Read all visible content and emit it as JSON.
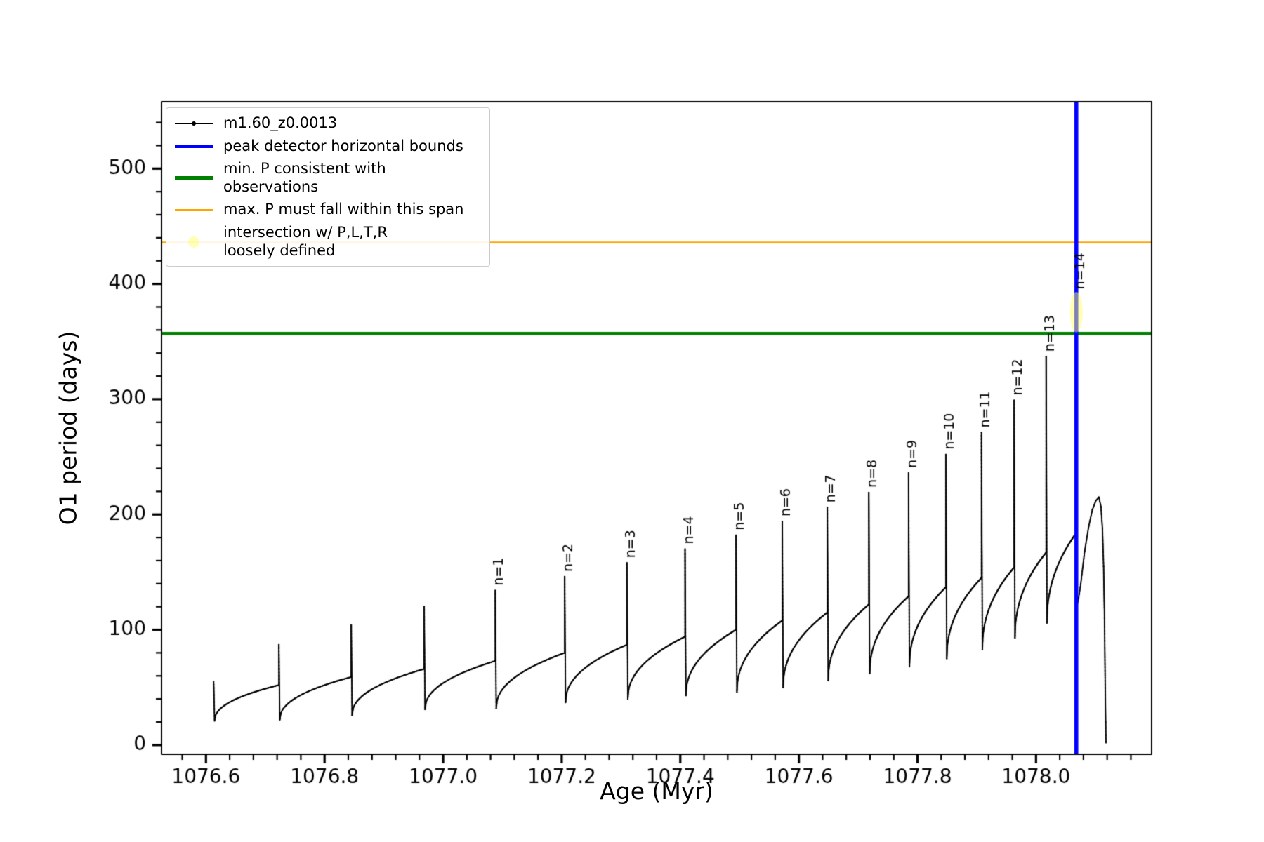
{
  "figure": {
    "xlabel": "Age (Myr)",
    "ylabel": "O1 period (days)"
  },
  "colors": {
    "series": "#000000",
    "peak_bounds": "#0000ff",
    "min_p": "#008000",
    "max_p": "#ffa500",
    "intersection": "#ffff66",
    "background": "#ffffff"
  },
  "legend": {
    "entries": [
      {
        "label": "m1.60_z0.0013"
      },
      {
        "label": "peak detector horizontal bounds"
      },
      {
        "label": "min. P consistent with observations"
      },
      {
        "label": "max. P must fall within this span"
      },
      {
        "label": "intersection w/ P,L,T,R\nloosely defined"
      }
    ]
  },
  "chart_data": {
    "type": "line",
    "title": "",
    "xlabel": "Age (Myr)",
    "ylabel": "O1 period (days)",
    "series_name": "m1.60_z0.0013",
    "xlim": [
      1076.525,
      1078.195
    ],
    "ylim": [
      -8,
      558
    ],
    "xticks": [
      1076.6,
      1076.8,
      1077.0,
      1077.2,
      1077.4,
      1077.6,
      1077.8,
      1078.0
    ],
    "xtick_labels": [
      "1076.6",
      "1076.8",
      "1077.0",
      "1077.2",
      "1077.4",
      "1077.6",
      "1077.8",
      "1078.0"
    ],
    "x_minor_step": 0.04,
    "yticks": [
      0,
      100,
      200,
      300,
      400,
      500
    ],
    "y_minor_step": 20,
    "grid": false,
    "legend_position": "upper left",
    "hlines": [
      {
        "y": 436,
        "color": "#ffa500",
        "lw": 2.5,
        "name": "max. P must fall within this span"
      },
      {
        "y": 357,
        "color": "#008000",
        "lw": 4.5,
        "name": "min. P consistent with observations"
      }
    ],
    "vlines": [
      {
        "x": 1078.068,
        "color": "#0000ff",
        "lw": 5.5,
        "name": "peak detector horizontal bounds"
      }
    ],
    "intersection_marker": {
      "x": 1078.068,
      "y_span": [
        358,
        393
      ],
      "color": "#ffff66",
      "alpha": 0.5
    },
    "start": {
      "x": 1076.613,
      "y_top": 55,
      "y_min": 21
    },
    "cycles": [
      {
        "x_spike": 1076.723,
        "y_peak": 87,
        "y_plateau": 52,
        "y_min_after": 22,
        "label": ""
      },
      {
        "x_spike": 1076.845,
        "y_peak": 104,
        "y_plateau": 59,
        "y_min_after": 26,
        "label": ""
      },
      {
        "x_spike": 1076.968,
        "y_peak": 120,
        "y_plateau": 66,
        "y_min_after": 31,
        "label": ""
      },
      {
        "x_spike": 1077.088,
        "y_peak": 134,
        "y_plateau": 73,
        "y_min_after": 32,
        "label": "n=1"
      },
      {
        "x_spike": 1077.205,
        "y_peak": 146,
        "y_plateau": 80,
        "y_min_after": 37,
        "label": "n=2"
      },
      {
        "x_spike": 1077.31,
        "y_peak": 158,
        "y_plateau": 87,
        "y_min_after": 40,
        "label": "n=3"
      },
      {
        "x_spike": 1077.408,
        "y_peak": 170,
        "y_plateau": 94,
        "y_min_after": 43,
        "label": "n=4"
      },
      {
        "x_spike": 1077.494,
        "y_peak": 182,
        "y_plateau": 100,
        "y_min_after": 46,
        "label": "n=5"
      },
      {
        "x_spike": 1077.572,
        "y_peak": 194,
        "y_plateau": 108,
        "y_min_after": 50,
        "label": "n=6"
      },
      {
        "x_spike": 1077.648,
        "y_peak": 206,
        "y_plateau": 115,
        "y_min_after": 56,
        "label": "n=7"
      },
      {
        "x_spike": 1077.718,
        "y_peak": 219,
        "y_plateau": 122,
        "y_min_after": 62,
        "label": "n=8"
      },
      {
        "x_spike": 1077.785,
        "y_peak": 236,
        "y_plateau": 129,
        "y_min_after": 68,
        "label": "n=9"
      },
      {
        "x_spike": 1077.848,
        "y_peak": 252,
        "y_plateau": 137,
        "y_min_after": 75,
        "label": "n=10"
      },
      {
        "x_spike": 1077.908,
        "y_peak": 271,
        "y_plateau": 145,
        "y_min_after": 83,
        "label": "n=11"
      },
      {
        "x_spike": 1077.963,
        "y_peak": 299,
        "y_plateau": 154,
        "y_min_after": 93,
        "label": "n=12"
      },
      {
        "x_spike": 1078.017,
        "y_peak": 337,
        "y_plateau": 167,
        "y_min_after": 106,
        "label": "n=13"
      },
      {
        "x_spike": 1078.068,
        "y_peak": 391,
        "y_plateau": 184,
        "y_min_after": 122,
        "label": "n=14"
      }
    ],
    "tail": [
      [
        1078.072,
        128
      ],
      [
        1078.0755,
        140
      ],
      [
        1078.082,
        168
      ],
      [
        1078.089,
        190
      ],
      [
        1078.095,
        204
      ],
      [
        1078.101,
        212
      ],
      [
        1078.106,
        215
      ],
      [
        1078.1095,
        207
      ],
      [
        1078.112,
        188
      ],
      [
        1078.114,
        155
      ],
      [
        1078.1155,
        110
      ],
      [
        1078.1165,
        60
      ],
      [
        1078.1175,
        20
      ],
      [
        1078.118,
        2
      ]
    ]
  }
}
